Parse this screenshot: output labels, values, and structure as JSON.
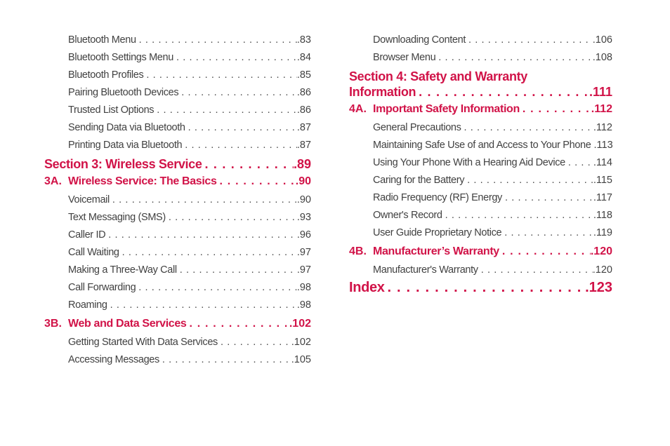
{
  "page": {
    "kind": "table-of-contents",
    "background": "#ffffff",
    "accent_color": "#d11348",
    "body_text_color": "#414141"
  },
  "left_column": {
    "entries": [
      {
        "label": "Bluetooth Menu",
        "page": "83"
      },
      {
        "label": "Bluetooth Settings Menu",
        "page": "84"
      },
      {
        "label": "Bluetooth Profiles",
        "page": "85"
      },
      {
        "label": "Pairing Bluetooth Devices",
        "page": "86"
      },
      {
        "label": "Trusted List Options",
        "page": "86"
      },
      {
        "label": "Sending Data via Bluetooth",
        "page": "87"
      },
      {
        "label": "Printing Data via Bluetooth",
        "page": "87"
      },
      {
        "label": "Section 3: Wireless Service",
        "page": "89"
      },
      {
        "prefix": "3A.",
        "label": "Wireless Service: The Basics",
        "page": "90"
      },
      {
        "label": "Voicemail",
        "page": "90"
      },
      {
        "label": "Text Messaging (SMS)",
        "page": "93"
      },
      {
        "label": "Caller ID",
        "page": "96"
      },
      {
        "label": "Call Waiting",
        "page": "97"
      },
      {
        "label": "Making a Three-Way Call",
        "page": "97"
      },
      {
        "label": "Call Forwarding",
        "page": "98"
      },
      {
        "label": "Roaming",
        "page": "98"
      },
      {
        "prefix": "3B.",
        "label": "Web and Data Services",
        "page": "102"
      },
      {
        "label": "Getting Started With Data Services",
        "page": "102"
      },
      {
        "label": "Accessing Messages",
        "page": "105"
      }
    ]
  },
  "right_column": {
    "entries": [
      {
        "label": "Downloading Content",
        "page": "106"
      },
      {
        "label": "Browser Menu",
        "page": "108"
      },
      {
        "label": "Section 4: Safety and Warranty Information",
        "label_lines": [
          "Section 4: Safety and Warranty",
          "Information"
        ],
        "page": "111"
      },
      {
        "prefix": "4A.",
        "label": "Important Safety Information",
        "page": "112"
      },
      {
        "label": "General Precautions",
        "page": "112"
      },
      {
        "label": "Maintaining Safe Use of and Access to Your Phone",
        "page": "113"
      },
      {
        "label": "Using Your Phone With a Hearing Aid Device",
        "page": "114"
      },
      {
        "label": "Caring for the Battery",
        "page": "115"
      },
      {
        "label": "Radio Frequency (RF) Energy",
        "page": "117"
      },
      {
        "label": "Owner's Record",
        "page": "118"
      },
      {
        "label": "User Guide Proprietary Notice",
        "page": "119"
      },
      {
        "prefix": "4B.",
        "label": "Manufacturer’s Warranty",
        "page": "120"
      },
      {
        "label": "Manufacturer's Warranty",
        "page": "120"
      },
      {
        "label": "Index",
        "page": "123"
      }
    ]
  }
}
